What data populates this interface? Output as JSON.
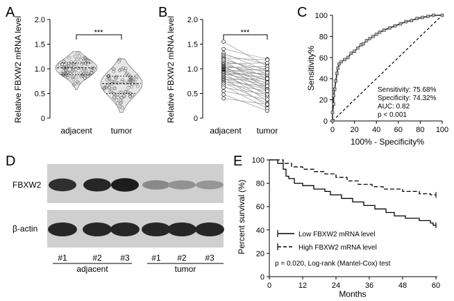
{
  "figure": {
    "panel_letters": [
      "A",
      "B",
      "C",
      "D",
      "E"
    ]
  },
  "chart_data": [
    {
      "panel": "A",
      "type": "scatter",
      "ylabel": "Relative FBXW2 mRNA level",
      "ylim": [
        0,
        2.0
      ],
      "yticks": [
        "0",
        "0.5",
        "1.0",
        "1.5",
        "2.0"
      ],
      "categories": [
        "adjacent",
        "tumor"
      ],
      "series": [
        {
          "category": "adjacent",
          "median": 1.02,
          "q1": 0.88,
          "q3": 1.12,
          "min": 0.58,
          "max": 1.35
        },
        {
          "category": "tumor",
          "median": 0.7,
          "q1": 0.5,
          "q3": 0.85,
          "min": 0.12,
          "max": 1.2
        }
      ],
      "annotation": "***"
    },
    {
      "panel": "B",
      "type": "line",
      "ylabel": "Relative FBXW2 mRNA level",
      "ylim": [
        0,
        2.0
      ],
      "yticks": [
        "0",
        "0.5",
        "1.0",
        "1.5",
        "2.0"
      ],
      "categories": [
        "adjacent",
        "tumor"
      ],
      "pairs": [
        [
          1.55,
          1.05
        ],
        [
          1.4,
          1.2
        ],
        [
          1.32,
          0.95
        ],
        [
          1.28,
          1.1
        ],
        [
          1.25,
          0.8
        ],
        [
          1.22,
          1.18
        ],
        [
          1.2,
          0.9
        ],
        [
          1.18,
          0.6
        ],
        [
          1.15,
          1.0
        ],
        [
          1.12,
          0.75
        ],
        [
          1.1,
          1.12
        ],
        [
          1.08,
          0.85
        ],
        [
          1.06,
          0.55
        ],
        [
          1.05,
          0.95
        ],
        [
          1.03,
          0.7
        ],
        [
          1.02,
          1.05
        ],
        [
          1.0,
          0.65
        ],
        [
          0.99,
          0.88
        ],
        [
          0.98,
          0.45
        ],
        [
          0.97,
          0.78
        ],
        [
          0.95,
          1.0
        ],
        [
          0.94,
          0.6
        ],
        [
          0.93,
          0.82
        ],
        [
          0.92,
          0.35
        ],
        [
          0.9,
          0.72
        ],
        [
          0.88,
          0.92
        ],
        [
          0.86,
          0.5
        ],
        [
          0.84,
          0.68
        ],
        [
          0.82,
          0.25
        ],
        [
          0.8,
          0.58
        ],
        [
          0.78,
          0.8
        ],
        [
          0.76,
          0.42
        ],
        [
          0.74,
          0.65
        ],
        [
          0.72,
          0.3
        ],
        [
          0.7,
          0.55
        ],
        [
          0.66,
          0.2
        ],
        [
          0.62,
          0.48
        ],
        [
          0.55,
          0.38
        ],
        [
          0.48,
          0.15
        ],
        [
          0.4,
          0.28
        ]
      ],
      "annotation": "***"
    },
    {
      "panel": "C",
      "type": "line",
      "xlabel": "100% - Specificity%",
      "ylabel": "Sensitivity%",
      "xlim": [
        0,
        100
      ],
      "ylim": [
        0,
        100
      ],
      "xticks": [
        "0",
        "20",
        "40",
        "60",
        "80",
        "100"
      ],
      "yticks": [
        "0",
        "20",
        "40",
        "60",
        "80",
        "100"
      ],
      "roc": [
        [
          0,
          0
        ],
        [
          0,
          8
        ],
        [
          1,
          16
        ],
        [
          1,
          24
        ],
        [
          2,
          30
        ],
        [
          3,
          38
        ],
        [
          4,
          45
        ],
        [
          5,
          50
        ],
        [
          6,
          54
        ],
        [
          8,
          56
        ],
        [
          11,
          58
        ],
        [
          14,
          60
        ],
        [
          17,
          64
        ],
        [
          20,
          66
        ],
        [
          23,
          69
        ],
        [
          26,
          72
        ],
        [
          28,
          73
        ],
        [
          31,
          76
        ],
        [
          34,
          78
        ],
        [
          37,
          80
        ],
        [
          40,
          82
        ],
        [
          43,
          84
        ],
        [
          47,
          86
        ],
        [
          52,
          88
        ],
        [
          57,
          90
        ],
        [
          62,
          92
        ],
        [
          67,
          94
        ],
        [
          72,
          95
        ],
        [
          77,
          97
        ],
        [
          82,
          98
        ],
        [
          87,
          99
        ],
        [
          92,
          100
        ],
        [
          100,
          100
        ]
      ],
      "stats": [
        "Sensitivity: 75.68%",
        "Specificity: 74.32%",
        "AUC: 0.82",
        "p < 0.001"
      ]
    },
    {
      "panel": "D",
      "type": "other",
      "row_labels": [
        "FBXW2",
        "β-actin"
      ],
      "lane_labels": [
        "#1",
        "#2",
        "#3",
        "#1",
        "#2",
        "#3"
      ],
      "group_labels": [
        "adjacent",
        "tumor"
      ],
      "fbxw2_band_intensity": [
        0.85,
        0.9,
        0.95,
        0.35,
        0.3,
        0.28
      ],
      "actin_band_intensity": [
        0.9,
        0.9,
        0.9,
        0.9,
        0.9,
        0.9
      ]
    },
    {
      "panel": "E",
      "type": "line",
      "xlabel": "Months",
      "ylabel": "Percent survival (%)",
      "xlim": [
        0,
        60
      ],
      "ylim": [
        0,
        100
      ],
      "xticks": [
        "0",
        "12",
        "24",
        "36",
        "48",
        "60"
      ],
      "yticks": [
        "0",
        "20",
        "40",
        "60",
        "80",
        "100"
      ],
      "series": [
        {
          "name": "Low FBXW2 mRNA level",
          "steps": [
            [
              0,
              100
            ],
            [
              3,
              100
            ],
            [
              3,
              97
            ],
            [
              5,
              97
            ],
            [
              5,
              92
            ],
            [
              6,
              92
            ],
            [
              6,
              86
            ],
            [
              7,
              86
            ],
            [
              7,
              84
            ],
            [
              9,
              84
            ],
            [
              9,
              80
            ],
            [
              12,
              80
            ],
            [
              12,
              78
            ],
            [
              16,
              78
            ],
            [
              16,
              75
            ],
            [
              20,
              75
            ],
            [
              20,
              73
            ],
            [
              22,
              73
            ],
            [
              22,
              70
            ],
            [
              26,
              70
            ],
            [
              26,
              67
            ],
            [
              30,
              67
            ],
            [
              30,
              64
            ],
            [
              34,
              64
            ],
            [
              34,
              61
            ],
            [
              38,
              61
            ],
            [
              38,
              58
            ],
            [
              42,
              58
            ],
            [
              42,
              55
            ],
            [
              45,
              55
            ],
            [
              45,
              52
            ],
            [
              49,
              52
            ],
            [
              49,
              50
            ],
            [
              54,
              50
            ],
            [
              54,
              48
            ],
            [
              58,
              48
            ],
            [
              58,
              46
            ],
            [
              59,
              46
            ],
            [
              59,
              44
            ],
            [
              60,
              44
            ]
          ]
        },
        {
          "name": "High FBXW2 mRNA level",
          "steps": [
            [
              0,
              100
            ],
            [
              5,
              100
            ],
            [
              5,
              97
            ],
            [
              8,
              97
            ],
            [
              8,
              94
            ],
            [
              12,
              94
            ],
            [
              12,
              92
            ],
            [
              16,
              92
            ],
            [
              16,
              90
            ],
            [
              20,
              90
            ],
            [
              20,
              88
            ],
            [
              24,
              88
            ],
            [
              24,
              85
            ],
            [
              28,
              85
            ],
            [
              28,
              82
            ],
            [
              32,
              82
            ],
            [
              32,
              79
            ],
            [
              37,
              79
            ],
            [
              37,
              77
            ],
            [
              41,
              77
            ],
            [
              41,
              75
            ],
            [
              48,
              75
            ],
            [
              48,
              73
            ],
            [
              54,
              73
            ],
            [
              54,
              71
            ],
            [
              58,
              71
            ],
            [
              58,
              70
            ],
            [
              60,
              70
            ]
          ]
        }
      ],
      "annotation": "p = 0.020, Log-rank (Mantel-Cox) test"
    }
  ]
}
